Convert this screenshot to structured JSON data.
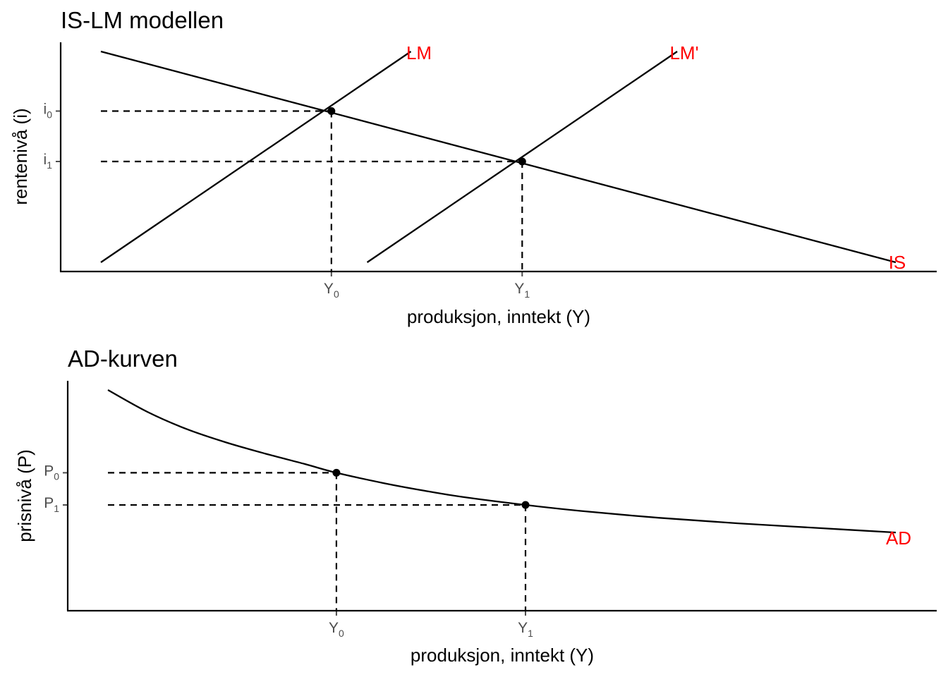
{
  "colors": {
    "line": "#000000",
    "label": "#ff0000",
    "tick": "#4d4d4d"
  },
  "chart_data": [
    {
      "type": "line",
      "title": "IS-LM modellen",
      "xlabel": "produksjon, inntekt (Y)",
      "ylabel": "rentenivå (i)",
      "xlim": [
        0,
        100
      ],
      "ylim": [
        0,
        100
      ],
      "x_ticks": [
        {
          "base": "Y",
          "sub": "0",
          "value": 29
        },
        {
          "base": "Y",
          "sub": "1",
          "value": 53
        }
      ],
      "y_ticks": [
        {
          "base": "i",
          "sub": "0",
          "value": 70
        },
        {
          "base": "i",
          "sub": "1",
          "value": 48
        }
      ],
      "series": [
        {
          "name": "IS",
          "x": [
            0,
            100
          ],
          "y": [
            96,
            4
          ]
        },
        {
          "name": "LM",
          "x": [
            0,
            39
          ],
          "y": [
            4,
            96
          ]
        },
        {
          "name": "LM'",
          "x": [
            33.5,
            72.5
          ],
          "y": [
            4,
            96
          ]
        }
      ],
      "points": [
        {
          "x": 29,
          "y": 70
        },
        {
          "x": 53,
          "y": 48
        }
      ]
    },
    {
      "type": "line",
      "title": "AD-kurven",
      "xlabel": "produksjon, inntekt (Y)",
      "ylabel": "prisnivå (P)",
      "xlim": [
        0,
        100
      ],
      "ylim": [
        0,
        100
      ],
      "x_ticks": [
        {
          "base": "Y",
          "sub": "0",
          "value": 29
        },
        {
          "base": "Y",
          "sub": "1",
          "value": 53
        }
      ],
      "y_ticks": [
        {
          "base": "P",
          "sub": "0",
          "value": 60
        },
        {
          "base": "P",
          "sub": "1",
          "value": 46
        }
      ],
      "series": [
        {
          "name": "AD",
          "x": [
            0,
            5,
            10,
            15,
            20,
            25,
            29,
            35,
            40,
            45,
            53,
            60,
            70,
            80,
            90,
            100
          ],
          "y": [
            96,
            86.5,
            79,
            73.2,
            68.3,
            63.8,
            60,
            55.5,
            52.3,
            49.5,
            46,
            43.4,
            40.4,
            38,
            36,
            34
          ]
        }
      ],
      "points": [
        {
          "x": 29,
          "y": 60
        },
        {
          "x": 53,
          "y": 46
        }
      ]
    }
  ]
}
